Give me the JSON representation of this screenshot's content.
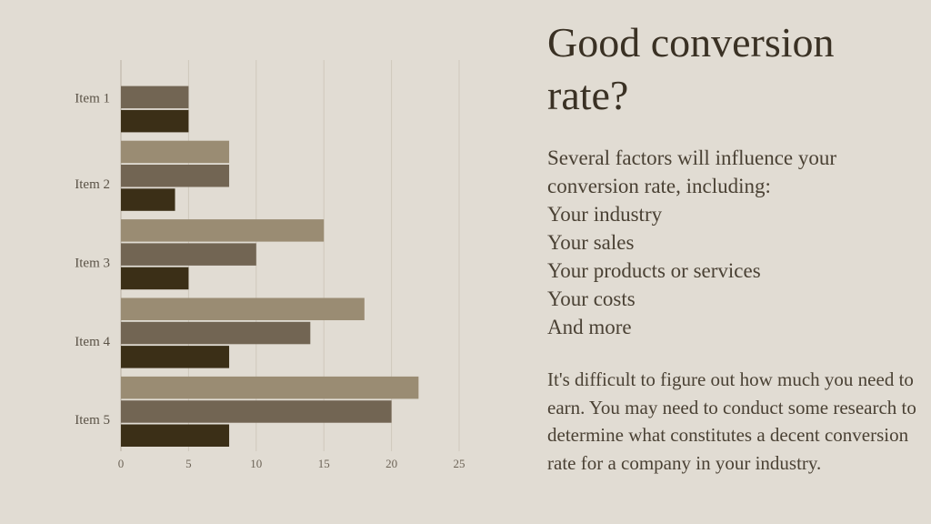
{
  "chart_data": {
    "type": "bar",
    "orientation": "horizontal",
    "categories": [
      "Item 1",
      "Item 2",
      "Item 3",
      "Item 4",
      "Item 5"
    ],
    "series": [
      {
        "values": [
          null,
          8,
          15,
          18,
          22
        ],
        "color": "#9a8c73"
      },
      {
        "values": [
          5,
          8,
          10,
          14,
          20
        ],
        "color": "#726553"
      },
      {
        "values": [
          5,
          4,
          5,
          8,
          8
        ],
        "color": "#3b2f17"
      }
    ],
    "x_ticks": [
      0,
      5,
      10,
      15,
      20,
      25
    ],
    "xlim": [
      0,
      25
    ],
    "grid": true,
    "xlabel": "",
    "ylabel": "",
    "title": ""
  },
  "text": {
    "title": "Good conversion rate?",
    "intro": "Several factors will influence your conversion rate, including:",
    "factors": [
      "Your industry",
      "Your sales",
      "Your products or services",
      "Your costs",
      "And more"
    ],
    "closing": "It's difficult to figure out how much you need to earn. You may need to conduct some research to determine what constitutes a decent conversion rate for a company in your industry."
  },
  "colors": {
    "background": "#e1dcd3",
    "gridline": "#cfc8bc",
    "text": "#3b3327"
  }
}
